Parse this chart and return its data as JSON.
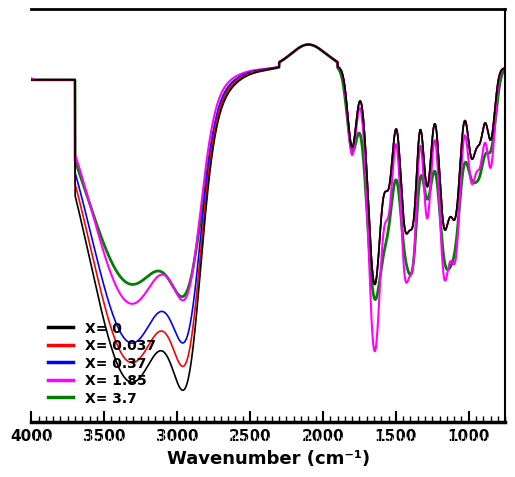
{
  "xlabel": "Wavenumber (cm⁻¹)",
  "xlim": [
    4000,
    750
  ],
  "ylim": [
    0.0,
    1.05
  ],
  "xticks": [
    4000,
    3500,
    3000,
    2500,
    2000,
    1500,
    1000
  ],
  "legend_labels": [
    "X= 0",
    "X= 0.037",
    "X= 0.37",
    "X= 1.85",
    "X= 3.7"
  ],
  "legend_colors": [
    "#000000",
    "#ff0000",
    "#0000ff",
    "#ff00ff",
    "#008000"
  ],
  "line_widths": [
    1.2,
    1.2,
    1.2,
    1.5,
    2.0
  ],
  "background_color": "#ffffff"
}
